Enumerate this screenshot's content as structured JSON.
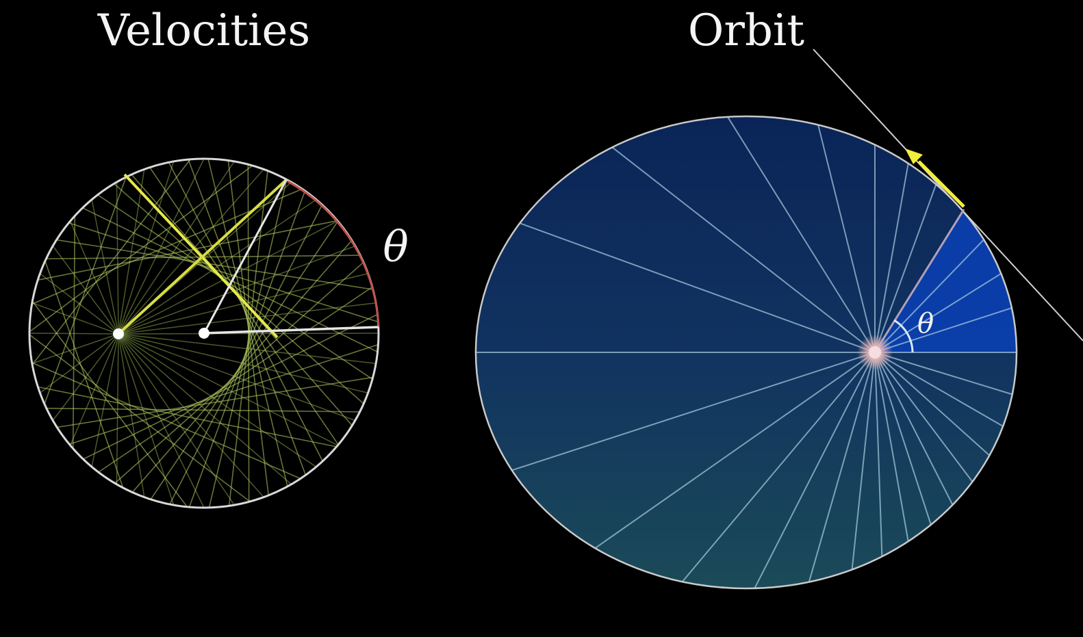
{
  "velocities": {
    "title": "Velocities",
    "angle_label": "θ"
  },
  "orbit": {
    "title": "Orbit",
    "angle_label": "θ"
  },
  "colors": {
    "background": "#000000",
    "circle_stroke": "#d9d9d9",
    "highlight": "#e8e84a",
    "velocity_lines": "#a8c85a",
    "arc_highlight": "#c0504d",
    "orbit_fill_top": "#0b2a5a",
    "orbit_fill_bottom": "#1c4b5a",
    "orbit_highlight_sector": "#0a3fb0",
    "sector_lines": "#9fc7d8"
  }
}
